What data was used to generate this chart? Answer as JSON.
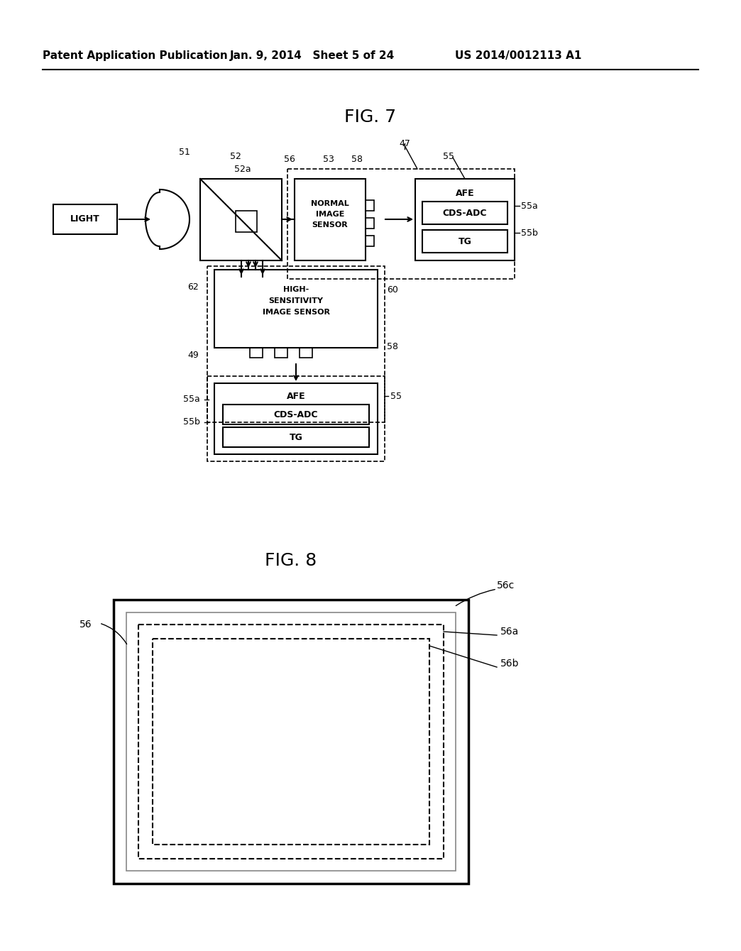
{
  "bg_color": "#ffffff",
  "header_left": "Patent Application Publication",
  "header_mid": "Jan. 9, 2014   Sheet 5 of 24",
  "header_right": "US 2014/0012113 A1",
  "fig7_title": "FIG. 7",
  "fig8_title": "FIG. 8"
}
